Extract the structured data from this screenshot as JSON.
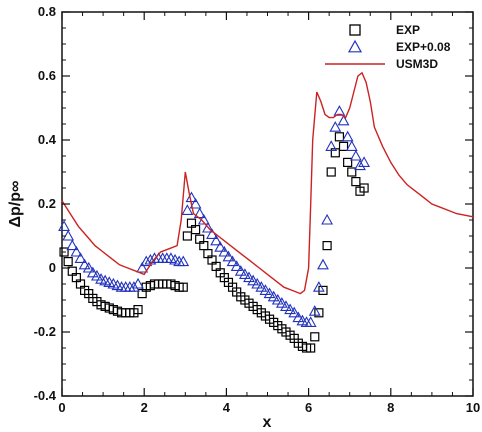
{
  "chart_data": {
    "type": "scatter",
    "xlabel": "x",
    "ylabel": "Δp/p∞",
    "xlim": [
      0,
      10
    ],
    "ylim": [
      -0.4,
      0.8
    ],
    "xticks": [
      0,
      2,
      4,
      6,
      8,
      10
    ],
    "yticks": [
      -0.4,
      -0.2,
      0,
      0.2,
      0.4,
      0.6,
      0.8
    ],
    "xtick_labels": [
      "0",
      "2",
      "4",
      "6",
      "8",
      "10"
    ],
    "ytick_labels": [
      "-0.4",
      "-0.2",
      "0",
      "0.2",
      "0.4",
      "0.6",
      "0.8"
    ],
    "grid": false,
    "legend_position": "top-right",
    "series": [
      {
        "name": "EXP",
        "marker": "square",
        "color": "#000000",
        "x": [
          0.05,
          0.15,
          0.25,
          0.35,
          0.45,
          0.55,
          0.65,
          0.75,
          0.85,
          0.95,
          1.05,
          1.15,
          1.25,
          1.35,
          1.45,
          1.55,
          1.65,
          1.75,
          1.85,
          1.95,
          2.05,
          2.15,
          2.25,
          2.35,
          2.45,
          2.55,
          2.65,
          2.75,
          2.85,
          2.95,
          3.05,
          3.15,
          3.25,
          3.35,
          3.45,
          3.55,
          3.65,
          3.75,
          3.85,
          3.95,
          4.05,
          4.15,
          4.25,
          4.35,
          4.45,
          4.55,
          4.65,
          4.75,
          4.85,
          4.95,
          5.05,
          5.15,
          5.25,
          5.35,
          5.45,
          5.55,
          5.65,
          5.75,
          5.85,
          5.95,
          6.05,
          6.15,
          6.25,
          6.35,
          6.45,
          6.55,
          6.65,
          6.75,
          6.85,
          6.95,
          7.05,
          7.15,
          7.25,
          7.35
        ],
        "y": [
          0.05,
          0.02,
          -0.01,
          -0.03,
          -0.05,
          -0.07,
          -0.08,
          -0.095,
          -0.105,
          -0.115,
          -0.12,
          -0.125,
          -0.13,
          -0.135,
          -0.14,
          -0.14,
          -0.14,
          -0.14,
          -0.13,
          -0.08,
          -0.06,
          -0.055,
          -0.05,
          -0.05,
          -0.05,
          -0.05,
          -0.05,
          -0.055,
          -0.06,
          -0.06,
          0.1,
          0.14,
          0.12,
          0.09,
          0.07,
          0.045,
          0.025,
          0.005,
          -0.015,
          -0.03,
          -0.045,
          -0.06,
          -0.075,
          -0.09,
          -0.1,
          -0.11,
          -0.12,
          -0.13,
          -0.14,
          -0.15,
          -0.16,
          -0.17,
          -0.18,
          -0.19,
          -0.2,
          -0.21,
          -0.22,
          -0.235,
          -0.245,
          -0.25,
          -0.25,
          -0.215,
          -0.14,
          -0.07,
          0.07,
          0.3,
          0.36,
          0.41,
          0.38,
          0.33,
          0.3,
          0.27,
          0.24,
          0.25
        ]
      },
      {
        "name": "EXP+0.08",
        "marker": "triangle",
        "color": "#2233bb",
        "x": [
          0.05,
          0.15,
          0.25,
          0.35,
          0.45,
          0.55,
          0.65,
          0.75,
          0.85,
          0.95,
          1.05,
          1.15,
          1.25,
          1.35,
          1.45,
          1.55,
          1.65,
          1.75,
          1.85,
          1.95,
          2.05,
          2.15,
          2.25,
          2.35,
          2.45,
          2.55,
          2.65,
          2.75,
          2.85,
          2.95,
          3.05,
          3.15,
          3.25,
          3.35,
          3.45,
          3.55,
          3.65,
          3.75,
          3.85,
          3.95,
          4.05,
          4.15,
          4.25,
          4.35,
          4.45,
          4.55,
          4.65,
          4.75,
          4.85,
          4.95,
          5.05,
          5.15,
          5.25,
          5.35,
          5.45,
          5.55,
          5.65,
          5.75,
          5.85,
          5.95,
          6.05,
          6.15,
          6.25,
          6.35,
          6.45,
          6.55,
          6.65,
          6.75,
          6.85,
          6.95,
          7.05,
          7.15,
          7.25,
          7.35
        ],
        "y": [
          0.13,
          0.1,
          0.07,
          0.05,
          0.03,
          0.01,
          0.0,
          -0.015,
          -0.025,
          -0.035,
          -0.04,
          -0.045,
          -0.05,
          -0.055,
          -0.06,
          -0.06,
          -0.06,
          -0.06,
          -0.05,
          0.0,
          0.02,
          0.025,
          0.03,
          0.03,
          0.03,
          0.03,
          0.03,
          0.025,
          0.02,
          0.02,
          0.18,
          0.22,
          0.2,
          0.17,
          0.15,
          0.125,
          0.105,
          0.085,
          0.065,
          0.05,
          0.035,
          0.02,
          0.005,
          -0.01,
          -0.02,
          -0.03,
          -0.04,
          -0.05,
          -0.06,
          -0.07,
          -0.08,
          -0.09,
          -0.1,
          -0.11,
          -0.12,
          -0.13,
          -0.14,
          -0.155,
          -0.165,
          -0.17,
          -0.17,
          -0.135,
          -0.06,
          0.01,
          0.15,
          0.38,
          0.44,
          0.49,
          0.46,
          0.41,
          0.38,
          0.35,
          0.32,
          0.33
        ]
      },
      {
        "name": "USM3D",
        "marker": "line",
        "color": "#cc2222",
        "x": [
          0,
          0.2,
          0.4,
          0.6,
          0.8,
          1.0,
          1.2,
          1.4,
          1.6,
          1.8,
          2.0,
          2.2,
          2.4,
          2.6,
          2.8,
          2.9,
          3.0,
          3.1,
          3.2,
          3.4,
          3.6,
          3.8,
          4.0,
          4.2,
          4.4,
          4.6,
          4.8,
          5.0,
          5.2,
          5.4,
          5.6,
          5.8,
          5.9,
          6.0,
          6.05,
          6.1,
          6.2,
          6.3,
          6.4,
          6.5,
          6.6,
          6.7,
          6.8,
          6.9,
          7.0,
          7.1,
          7.2,
          7.3,
          7.4,
          7.5,
          7.6,
          7.8,
          8.0,
          8.2,
          8.4,
          8.6,
          8.8,
          9.0,
          9.2,
          9.4,
          9.6,
          9.8,
          10.0
        ],
        "y": [
          0.21,
          0.17,
          0.13,
          0.1,
          0.07,
          0.05,
          0.03,
          0.01,
          0.0,
          -0.01,
          -0.02,
          0.02,
          0.05,
          0.06,
          0.07,
          0.15,
          0.3,
          0.23,
          0.17,
          0.15,
          0.12,
          0.1,
          0.08,
          0.06,
          0.04,
          0.02,
          0.0,
          -0.02,
          -0.04,
          -0.06,
          -0.07,
          -0.08,
          -0.07,
          0.0,
          0.2,
          0.4,
          0.55,
          0.52,
          0.48,
          0.47,
          0.47,
          0.48,
          0.48,
          0.47,
          0.5,
          0.55,
          0.6,
          0.61,
          0.58,
          0.52,
          0.44,
          0.38,
          0.33,
          0.29,
          0.26,
          0.24,
          0.22,
          0.2,
          0.19,
          0.18,
          0.17,
          0.165,
          0.16
        ]
      }
    ]
  }
}
